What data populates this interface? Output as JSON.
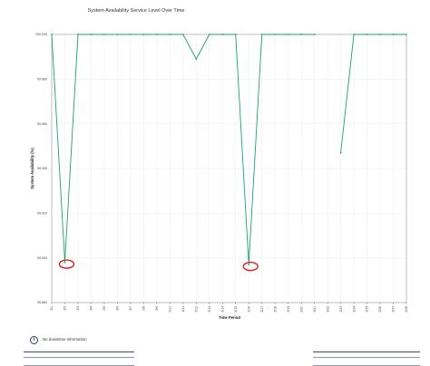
{
  "page": {
    "title": "System Availability Service Level Over Time",
    "info_text": "No downtime information"
  },
  "colors": {
    "line": "#1ea46a",
    "highlight": "#e02020",
    "grid": "#e8e8e8",
    "axis": "#555555"
  },
  "chart_data": {
    "type": "line",
    "title": "System Availability Service Level Over Time",
    "xlabel": "Time Period",
    "ylabel": "System Availability (%)",
    "ylim": [
      99.9,
      100.0
    ],
    "yticks": [
      "100.000",
      "99.980",
      "99.960",
      "99.940",
      "99.920",
      "99.900",
      "99.880"
    ],
    "ytick_values": [
      100.0,
      99.98,
      99.96,
      99.94,
      99.92,
      99.9,
      99.88
    ],
    "categories": [
      "2/1",
      "2/2",
      "2/3",
      "2/4",
      "2/5",
      "2/6",
      "2/7",
      "2/8",
      "2/9",
      "2/10",
      "2/11",
      "2/12",
      "2/13",
      "2/14",
      "2/15",
      "2/16",
      "2/17",
      "2/18",
      "2/19",
      "2/20",
      "2/21",
      "2/22",
      "2/23",
      "2/24",
      "2/25",
      "2/26",
      "2/27",
      "2/28"
    ],
    "series": [
      {
        "values": [
          100.0,
          99.898,
          100.0,
          100.0,
          100.0,
          100.0,
          100.0,
          100.0,
          100.0,
          100.0,
          100.0,
          99.989,
          100.0,
          100.0,
          100.0,
          99.897,
          100.0,
          100.0,
          100.0,
          100.0,
          100.0,
          null,
          99.947,
          100.0,
          100.0,
          100.0,
          100.0,
          100.0
        ]
      }
    ],
    "highlighted_points": [
      1,
      15
    ],
    "grid": true,
    "legend": "none"
  }
}
